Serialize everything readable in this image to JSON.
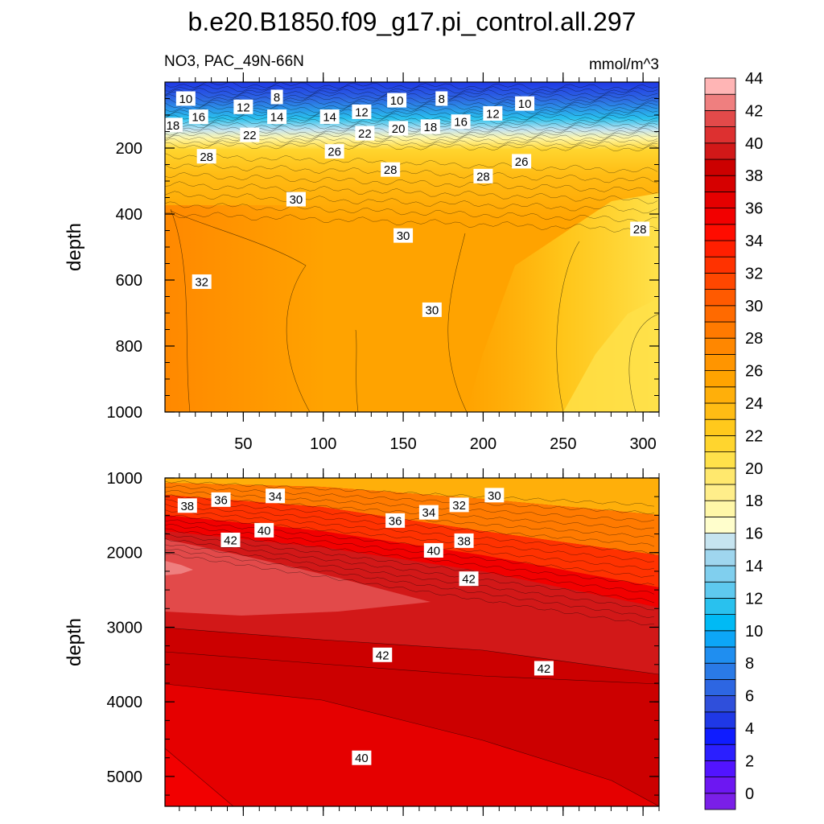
{
  "chart_data": {
    "type": "heatmap",
    "title": "b.e20.B1850.f09_g17.pi_control.all.297",
    "variable_label": "NO3, PAC_49N-66N",
    "units_label": "mmol/m^3",
    "panels": [
      {
        "name": "upper",
        "ylabel": "depth",
        "ylim": [
          0,
          1000
        ],
        "xlim": [
          1,
          310
        ],
        "x_ticks": [
          50,
          100,
          150,
          200,
          250,
          300
        ],
        "x_tick_labels": [
          "50",
          "100",
          "150",
          "200",
          "250",
          "300"
        ],
        "y_ticks": [
          200,
          400,
          600,
          800,
          1000
        ],
        "y_tick_labels": [
          "200",
          "400",
          "600",
          "800",
          "1000"
        ],
        "contour_labels": [
          {
            "x": 14,
            "y": 50,
            "text": "10"
          },
          {
            "x": 71,
            "y": 45,
            "text": "8"
          },
          {
            "x": 50,
            "y": 75,
            "text": "12"
          },
          {
            "x": 22,
            "y": 105,
            "text": "16"
          },
          {
            "x": 71,
            "y": 105,
            "text": "14"
          },
          {
            "x": 6,
            "y": 130,
            "text": "18"
          },
          {
            "x": 54,
            "y": 160,
            "text": "22"
          },
          {
            "x": 27,
            "y": 225,
            "text": "28"
          },
          {
            "x": 83,
            "y": 355,
            "text": "30"
          },
          {
            "x": 104,
            "y": 105,
            "text": "14"
          },
          {
            "x": 124,
            "y": 90,
            "text": "12"
          },
          {
            "x": 126,
            "y": 155,
            "text": "22"
          },
          {
            "x": 107,
            "y": 210,
            "text": "26"
          },
          {
            "x": 146,
            "y": 55,
            "text": "10"
          },
          {
            "x": 147,
            "y": 140,
            "text": "20"
          },
          {
            "x": 142,
            "y": 265,
            "text": "28"
          },
          {
            "x": 174,
            "y": 50,
            "text": "8"
          },
          {
            "x": 167,
            "y": 135,
            "text": "18"
          },
          {
            "x": 186,
            "y": 120,
            "text": "16"
          },
          {
            "x": 206,
            "y": 95,
            "text": "12"
          },
          {
            "x": 226,
            "y": 65,
            "text": "10"
          },
          {
            "x": 224,
            "y": 240,
            "text": "26"
          },
          {
            "x": 200,
            "y": 285,
            "text": "28"
          },
          {
            "x": 150,
            "y": 465,
            "text": "30"
          },
          {
            "x": 298,
            "y": 445,
            "text": "28"
          },
          {
            "x": 24,
            "y": 605,
            "text": "32"
          },
          {
            "x": 168,
            "y": 690,
            "text": "30"
          }
        ]
      },
      {
        "name": "lower",
        "ylabel": "depth",
        "ylim": [
          1000,
          5400
        ],
        "xlim": [
          1,
          310
        ],
        "y_ticks": [
          1000,
          2000,
          3000,
          4000,
          5000
        ],
        "y_tick_labels": [
          "1000",
          "2000",
          "3000",
          "4000",
          "5000"
        ],
        "contour_labels": [
          {
            "x": 15,
            "y": 1370,
            "text": "38"
          },
          {
            "x": 36,
            "y": 1290,
            "text": "36"
          },
          {
            "x": 70,
            "y": 1240,
            "text": "34"
          },
          {
            "x": 63,
            "y": 1700,
            "text": "40"
          },
          {
            "x": 42,
            "y": 1830,
            "text": "42"
          },
          {
            "x": 145,
            "y": 1570,
            "text": "36"
          },
          {
            "x": 166,
            "y": 1460,
            "text": "34"
          },
          {
            "x": 185,
            "y": 1360,
            "text": "32"
          },
          {
            "x": 207,
            "y": 1230,
            "text": "30"
          },
          {
            "x": 188,
            "y": 1840,
            "text": "38"
          },
          {
            "x": 169,
            "y": 1970,
            "text": "40"
          },
          {
            "x": 191,
            "y": 2350,
            "text": "42"
          },
          {
            "x": 137,
            "y": 3370,
            "text": "42"
          },
          {
            "x": 238,
            "y": 3550,
            "text": "42"
          },
          {
            "x": 124,
            "y": 4750,
            "text": "40"
          }
        ]
      }
    ],
    "colorbar": {
      "levels": [
        0,
        2,
        4,
        6,
        8,
        10,
        12,
        14,
        16,
        18,
        20,
        22,
        24,
        26,
        28,
        30,
        32,
        34,
        36,
        38,
        40,
        42,
        44
      ],
      "level_labels": [
        "0",
        "2",
        "4",
        "6",
        "8",
        "10",
        "12",
        "14",
        "16",
        "18",
        "20",
        "22",
        "24",
        "26",
        "28",
        "30",
        "32",
        "34",
        "36",
        "38",
        "40",
        "42",
        "44"
      ],
      "colors": [
        "#7a1fe8",
        "#6d17f2",
        "#5214ff",
        "#2b1fff",
        "#0f1cff",
        "#1f38e6",
        "#2f4fdb",
        "#2d66e2",
        "#2a7ae6",
        "#1f8ef0",
        "#0da6f7",
        "#00baf5",
        "#29c1ee",
        "#5ec9ef",
        "#80cfee",
        "#9fd6ee",
        "#c6e4f0",
        "#fffecc",
        "#fff7a8",
        "#ffee8a",
        "#ffe86d",
        "#ffe14a",
        "#ffd52e",
        "#ffc91c",
        "#ffbc14",
        "#ffaf0a",
        "#ffa300",
        "#ff9500",
        "#ff8700",
        "#ff7a00",
        "#ff6a00",
        "#ff5a00",
        "#ff4700",
        "#ff3200",
        "#ff1f00",
        "#ff0c00",
        "#f20000",
        "#e50000",
        "#d60000",
        "#cc0000",
        "#d21818",
        "#dd3030",
        "#e24a4a",
        "#ef7f7f",
        "#ffb5b5"
      ]
    }
  }
}
